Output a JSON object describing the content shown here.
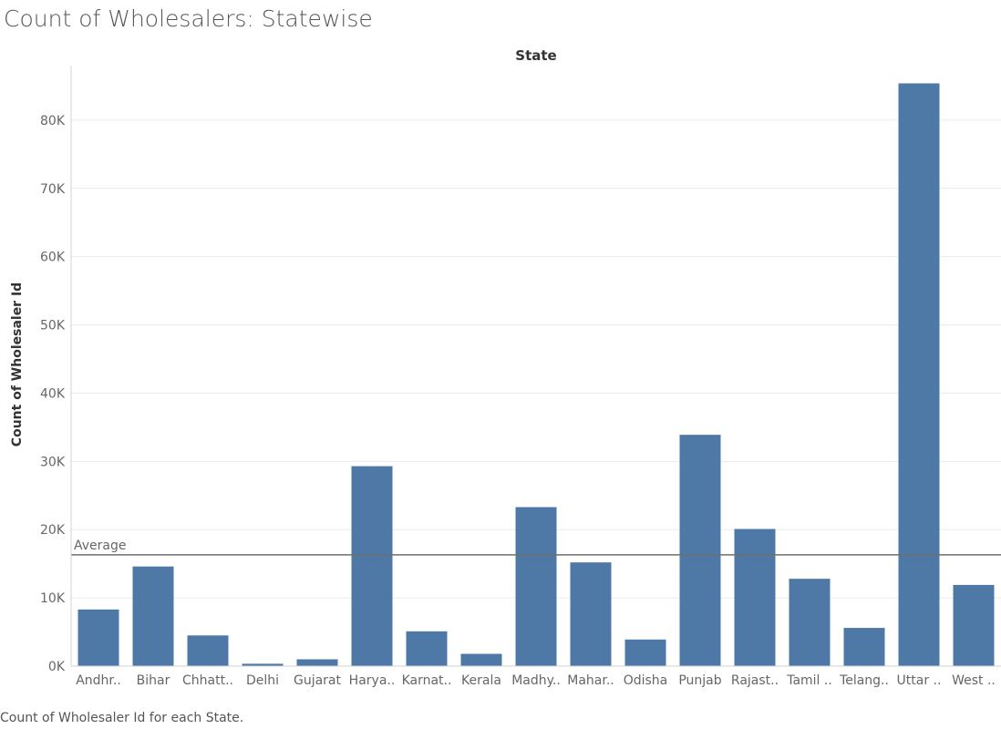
{
  "page": {
    "title": "Count of Wholesalers: Statewise",
    "caption": "Count of Wholesaler Id for each State."
  },
  "colors": {
    "bar": "#4e79a7",
    "grid": "#ececec",
    "axis": "#d0d0d0",
    "reference_line": "#6e6e6e",
    "tick_text": "#666666",
    "axis_title": "#333333"
  },
  "chart_data": {
    "type": "bar",
    "title": "Count of Wholesalers: Statewise",
    "xlabel": "State",
    "ylabel": "Count of Wholesaler Id",
    "categories": [
      "Andhr..",
      "Bihar",
      "Chhatt..",
      "Delhi",
      "Gujarat",
      "Harya..",
      "Karnat..",
      "Kerala",
      "Madhy..",
      "Mahar..",
      "Odisha",
      "Punjab",
      "Rajast..",
      "Tamil ..",
      "Telang..",
      "Uttar ..",
      "West .."
    ],
    "values": [
      8300,
      14600,
      4500,
      350,
      1000,
      29300,
      5100,
      1800,
      23300,
      15200,
      3900,
      33900,
      20100,
      12800,
      5600,
      85400,
      11900
    ],
    "ylim": [
      0,
      88000
    ],
    "yticks": [
      0,
      10000,
      20000,
      30000,
      40000,
      50000,
      60000,
      70000,
      80000
    ],
    "ytick_labels": [
      "0K",
      "10K",
      "20K",
      "30K",
      "40K",
      "50K",
      "60K",
      "70K",
      "80K"
    ],
    "reference_line": {
      "label": "Average",
      "value": 16300
    },
    "grid": true,
    "legend": "none"
  }
}
